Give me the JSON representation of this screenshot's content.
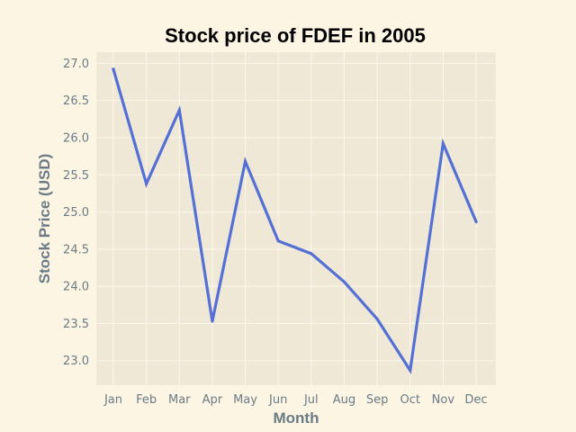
{
  "chart_data": {
    "type": "line",
    "title": "Stock price of FDEF in 2005",
    "xlabel": "Month",
    "ylabel": "Stock Price (USD)",
    "categories": [
      "Jan",
      "Feb",
      "Mar",
      "Apr",
      "May",
      "Jun",
      "Jul",
      "Aug",
      "Sep",
      "Oct",
      "Nov",
      "Dec"
    ],
    "series": [
      {
        "values": [
          26.92,
          25.38,
          26.37,
          23.53,
          25.68,
          24.61,
          24.44,
          24.06,
          23.56,
          22.87,
          25.92,
          24.87
        ]
      }
    ],
    "ylim": [
      22.67,
      27.15
    ],
    "yticks": [
      23.0,
      23.5,
      24.0,
      24.5,
      25.0,
      25.5,
      26.0,
      26.5,
      27.0
    ],
    "ytick_labels": [
      "23.0",
      "23.5",
      "24.0",
      "24.5",
      "25.0",
      "25.5",
      "26.0",
      "26.5",
      "27.0"
    ],
    "grid": true,
    "colors": {
      "line": "#5470d4",
      "plot_background": "#efe8d7",
      "page_background": "#fcf5e3",
      "grid": "#fcf7ea",
      "axis_label": "#6b7b85",
      "tick_label": "#6b7b85",
      "title": "#000000"
    }
  }
}
